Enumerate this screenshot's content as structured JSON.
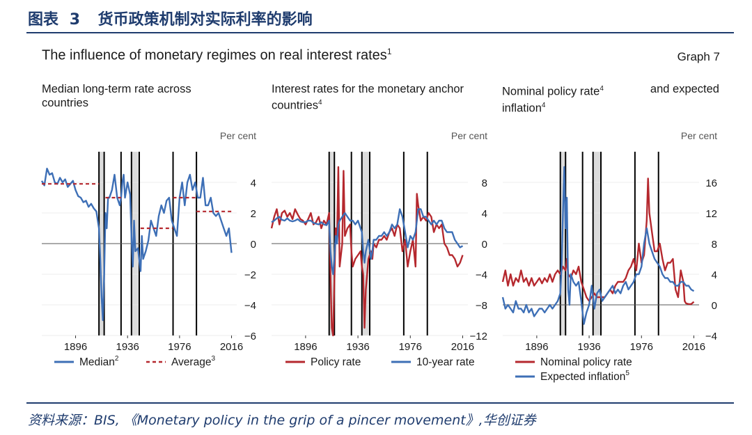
{
  "figure_label": {
    "prefix": "图表",
    "number": "3",
    "title": "货币政策机制对实际利率的影响"
  },
  "graph_header": {
    "title": "The influence of monetary regimes on real interest rates",
    "title_sup": "1",
    "number": "Graph 7"
  },
  "source": "资料来源：BIS, 《Monetary policy in the grip of a pincer movement》,华创证券",
  "colors": {
    "blue": "#3d6fb6",
    "red": "#b5282e",
    "shade": "#dcdcdc",
    "header": "#1f3c6e"
  },
  "panels": [
    {
      "title_line1": "Median long-term rate across",
      "title_line2": "countries",
      "title_sup": ""
    },
    {
      "title_line1": "Interest rates for the monetary anchor",
      "title_line2": "countries",
      "title_sup": "4"
    },
    {
      "title_line1": "Nominal policy rate",
      "title_line1_sup": "4",
      "title_line1_end": "and expected",
      "title_line2": "inflation",
      "title_sup": "4"
    }
  ],
  "chart_data": [
    {
      "type": "line",
      "title": "Median long-term rate across countries",
      "ylabel": "Per cent",
      "xlim": [
        1870,
        2020
      ],
      "ylim": [
        -6,
        6
      ],
      "xticks": [
        "1896",
        "1936",
        "1976",
        "2016"
      ],
      "yticks": [
        "4",
        "2",
        "0",
        "−2",
        "−4",
        "−6"
      ],
      "shaded_periods": [
        [
          1914,
          1918
        ],
        [
          1939,
          1945
        ]
      ],
      "regime_lines": [
        1914,
        1918,
        1931,
        1939,
        1945,
        1971,
        1989
      ],
      "series": [
        {
          "name": "Median",
          "sup": "2",
          "color": "blue",
          "style": "solid",
          "x": [
            1870,
            1872,
            1874,
            1876,
            1878,
            1880,
            1882,
            1884,
            1886,
            1888,
            1890,
            1892,
            1894,
            1896,
            1898,
            1900,
            1902,
            1904,
            1906,
            1908,
            1910,
            1912,
            1914,
            1915,
            1916,
            1917,
            1918,
            1919,
            1920,
            1921,
            1922,
            1924,
            1926,
            1928,
            1930,
            1931,
            1932,
            1933,
            1934,
            1936,
            1938,
            1939,
            1940,
            1941,
            1942,
            1944,
            1946,
            1947,
            1948,
            1950,
            1952,
            1954,
            1956,
            1958,
            1960,
            1962,
            1964,
            1966,
            1968,
            1970,
            1972,
            1974,
            1976,
            1978,
            1980,
            1982,
            1984,
            1986,
            1988,
            1990,
            1992,
            1994,
            1996,
            1998,
            2000,
            2002,
            2004,
            2006,
            2008,
            2010,
            2012,
            2014,
            2016
          ],
          "y": [
            4.1,
            3.8,
            4.9,
            4.5,
            4.6,
            4.0,
            3.9,
            4.3,
            4.0,
            4.2,
            3.7,
            3.9,
            4.1,
            3.5,
            3.1,
            3.0,
            2.7,
            2.8,
            2.4,
            2.6,
            2.3,
            2.1,
            1.0,
            -1.0,
            -3.5,
            -5.0,
            -2.0,
            2.0,
            1.0,
            3.0,
            3.0,
            3.5,
            4.5,
            3.0,
            2.5,
            3.0,
            4.0,
            4.5,
            3.0,
            4.0,
            3.2,
            0.5,
            -1.5,
            1.5,
            -0.5,
            -0.3,
            -1.8,
            0.5,
            -1.0,
            -0.5,
            0.2,
            1.5,
            1.0,
            0.5,
            1.8,
            2.5,
            2.0,
            2.8,
            3.0,
            1.5,
            1.0,
            0.5,
            3.0,
            4.0,
            2.5,
            4.0,
            4.5,
            3.5,
            4.0,
            3.0,
            3.0,
            4.3,
            2.5,
            2.5,
            3.0,
            2.0,
            1.8,
            2.0,
            1.5,
            1.0,
            0.5,
            1.0,
            -0.6
          ]
        },
        {
          "name": "Average",
          "sup": "3",
          "color": "red",
          "style": "dashed",
          "segments": [
            {
              "x": [
                1870,
                1914
              ],
              "y": [
                3.9,
                3.9
              ]
            },
            {
              "x": [
                1919,
                1931
              ],
              "y": [
                3.0,
                3.0
              ]
            },
            {
              "x": [
                1946,
                1971
              ],
              "y": [
                1.0,
                1.0
              ]
            },
            {
              "x": [
                1971,
                1989
              ],
              "y": [
                3.0,
                3.0
              ]
            },
            {
              "x": [
                1989,
                2016
              ],
              "y": [
                2.1,
                2.1
              ]
            }
          ]
        }
      ]
    },
    {
      "type": "line",
      "title": "Interest rates for the monetary anchor countries",
      "ylabel": "Per cent",
      "xlim": [
        1870,
        2020
      ],
      "ylim": [
        -12,
        12
      ],
      "xticks": [
        "1896",
        "1936",
        "1976",
        "2016"
      ],
      "yticks": [
        "8",
        "4",
        "0",
        "−4",
        "−8",
        "−12"
      ],
      "shaded_periods": [
        [
          1914,
          1918
        ],
        [
          1939,
          1945
        ]
      ],
      "regime_lines": [
        1914,
        1918,
        1931,
        1939,
        1945,
        1971,
        1989
      ],
      "series": [
        {
          "name": "Policy rate",
          "color": "red",
          "style": "solid",
          "x": [
            1870,
            1872,
            1874,
            1876,
            1878,
            1880,
            1882,
            1884,
            1886,
            1888,
            1890,
            1892,
            1894,
            1896,
            1898,
            1900,
            1902,
            1904,
            1906,
            1908,
            1910,
            1912,
            1914,
            1915,
            1916,
            1917,
            1918,
            1919,
            1920,
            1921,
            1922,
            1924,
            1925,
            1926,
            1928,
            1930,
            1931,
            1932,
            1934,
            1936,
            1938,
            1939,
            1940,
            1941,
            1942,
            1944,
            1946,
            1947,
            1948,
            1950,
            1952,
            1954,
            1956,
            1958,
            1960,
            1962,
            1964,
            1966,
            1968,
            1970,
            1972,
            1974,
            1976,
            1978,
            1980,
            1981,
            1982,
            1984,
            1986,
            1988,
            1990,
            1992,
            1994,
            1996,
            1998,
            2000,
            2002,
            2004,
            2006,
            2008,
            2010,
            2012,
            2014,
            2016
          ],
          "y": [
            2.0,
            3.5,
            4.5,
            2.5,
            4.0,
            4.3,
            3.5,
            4.0,
            3.2,
            4.5,
            3.8,
            3.2,
            3.0,
            2.5,
            3.2,
            4.0,
            2.5,
            2.8,
            3.5,
            2.0,
            3.0,
            2.5,
            4.0,
            -4.0,
            -11.0,
            -12.0,
            -5.0,
            2.0,
            0.5,
            10.0,
            -3.0,
            0.0,
            9.5,
            1.0,
            2.0,
            2.5,
            -1.0,
            -3.0,
            -2.0,
            -1.5,
            -1.0,
            -3.0,
            -4.0,
            -11.0,
            -6.0,
            -2.0,
            -1.0,
            -2.0,
            0.0,
            -0.5,
            0.5,
            0.5,
            1.0,
            0.5,
            1.5,
            2.0,
            1.0,
            2.5,
            2.0,
            -1.0,
            0.5,
            -3.0,
            -1.0,
            0.5,
            -3.0,
            6.5,
            5.0,
            3.0,
            3.5,
            3.0,
            4.0,
            3.5,
            1.5,
            2.5,
            2.0,
            2.5,
            0.0,
            -0.5,
            -1.5,
            -1.5,
            -2.0,
            -3.0,
            -2.5,
            -1.5
          ]
        },
        {
          "name": "10-year rate",
          "color": "blue",
          "style": "solid",
          "x": [
            1870,
            1872,
            1874,
            1876,
            1878,
            1880,
            1882,
            1884,
            1886,
            1888,
            1890,
            1892,
            1894,
            1896,
            1898,
            1900,
            1902,
            1904,
            1906,
            1908,
            1910,
            1912,
            1914,
            1915,
            1916,
            1917,
            1918,
            1919,
            1920,
            1921,
            1922,
            1924,
            1926,
            1928,
            1930,
            1932,
            1934,
            1936,
            1938,
            1939,
            1940,
            1941,
            1942,
            1944,
            1946,
            1947,
            1948,
            1950,
            1952,
            1954,
            1956,
            1958,
            1960,
            1962,
            1964,
            1966,
            1968,
            1970,
            1972,
            1974,
            1976,
            1978,
            1980,
            1982,
            1984,
            1986,
            1988,
            1990,
            1992,
            1994,
            1996,
            1998,
            2000,
            2002,
            2004,
            2006,
            2008,
            2010,
            2012,
            2014,
            2016
          ],
          "y": [
            2.8,
            3.0,
            3.3,
            3.5,
            3.1,
            3.0,
            3.3,
            3.0,
            2.9,
            3.0,
            3.2,
            2.9,
            2.8,
            2.8,
            3.0,
            3.0,
            2.7,
            2.6,
            2.5,
            2.8,
            2.5,
            2.4,
            3.0,
            -1.0,
            -3.0,
            -4.0,
            -2.0,
            1.0,
            0.0,
            2.5,
            3.0,
            3.5,
            4.0,
            3.5,
            3.0,
            3.0,
            2.5,
            3.0,
            2.0,
            1.5,
            -1.0,
            -2.5,
            -1.0,
            0.5,
            -2.0,
            -1.0,
            0.5,
            0.5,
            1.0,
            1.0,
            1.5,
            1.0,
            1.5,
            2.5,
            2.0,
            2.5,
            4.5,
            3.5,
            1.5,
            -0.5,
            1.0,
            0.5,
            1.5,
            4.5,
            4.5,
            3.5,
            3.5,
            3.0,
            2.5,
            3.0,
            2.5,
            3.0,
            3.0,
            2.0,
            1.5,
            1.5,
            1.5,
            0.5,
            0.0,
            -0.5,
            -0.3
          ]
        }
      ]
    },
    {
      "type": "line",
      "title": "Nominal policy rate and expected inflation",
      "ylabel": "Per cent",
      "xlim": [
        1870,
        2020
      ],
      "ylim": [
        -4,
        20
      ],
      "xticks": [
        "1896",
        "1936",
        "1976",
        "2016"
      ],
      "yticks": [
        "16",
        "12",
        "8",
        "4",
        "0",
        "−4"
      ],
      "shaded_periods": [
        [
          1914,
          1918
        ],
        [
          1939,
          1945
        ]
      ],
      "regime_lines": [
        1914,
        1918,
        1931,
        1939,
        1945,
        1971,
        1989
      ],
      "series": [
        {
          "name": "Nominal policy rate",
          "color": "red",
          "style": "solid",
          "x": [
            1870,
            1872,
            1874,
            1876,
            1878,
            1880,
            1882,
            1884,
            1886,
            1888,
            1890,
            1892,
            1894,
            1896,
            1898,
            1900,
            1902,
            1904,
            1906,
            1908,
            1910,
            1912,
            1914,
            1916,
            1918,
            1919,
            1920,
            1922,
            1924,
            1926,
            1928,
            1930,
            1932,
            1934,
            1936,
            1938,
            1940,
            1942,
            1944,
            1946,
            1948,
            1950,
            1952,
            1954,
            1956,
            1958,
            1960,
            1962,
            1964,
            1966,
            1968,
            1970,
            1972,
            1974,
            1976,
            1978,
            1980,
            1981,
            1982,
            1984,
            1986,
            1988,
            1990,
            1992,
            1994,
            1996,
            1998,
            2000,
            2002,
            2004,
            2006,
            2008,
            2009,
            2010,
            2012,
            2014,
            2016
          ],
          "y": [
            3.0,
            4.5,
            2.5,
            4.0,
            2.5,
            3.5,
            3.0,
            4.5,
            3.0,
            3.5,
            2.5,
            3.5,
            2.5,
            3.0,
            3.5,
            2.8,
            3.5,
            3.0,
            4.0,
            3.0,
            4.0,
            4.5,
            4.0,
            5.0,
            4.5,
            6.0,
            4.0,
            3.5,
            4.5,
            4.0,
            5.0,
            3.0,
            2.0,
            1.0,
            0.5,
            1.0,
            1.5,
            1.0,
            1.0,
            1.0,
            1.0,
            1.5,
            2.0,
            1.5,
            2.5,
            3.0,
            3.0,
            3.0,
            3.5,
            4.5,
            5.0,
            6.0,
            4.5,
            8.0,
            5.5,
            6.5,
            11.0,
            16.5,
            12.0,
            9.5,
            7.0,
            7.0,
            8.0,
            6.0,
            4.5,
            5.5,
            5.5,
            6.0,
            2.0,
            1.0,
            4.5,
            3.0,
            0.5,
            0.2,
            0.1,
            0.1,
            0.4
          ]
        },
        {
          "name": "Expected inflation",
          "sup": "5",
          "color": "blue",
          "style": "solid",
          "x": [
            1870,
            1872,
            1874,
            1876,
            1878,
            1880,
            1882,
            1884,
            1886,
            1888,
            1890,
            1892,
            1894,
            1896,
            1898,
            1900,
            1902,
            1904,
            1906,
            1908,
            1910,
            1912,
            1914,
            1915,
            1916,
            1917,
            1918,
            1919,
            1920,
            1921,
            1922,
            1924,
            1926,
            1928,
            1930,
            1932,
            1934,
            1936,
            1938,
            1940,
            1942,
            1944,
            1946,
            1948,
            1950,
            1952,
            1954,
            1956,
            1958,
            1960,
            1962,
            1964,
            1966,
            1968,
            1970,
            1972,
            1974,
            1976,
            1978,
            1980,
            1982,
            1984,
            1986,
            1988,
            1990,
            1992,
            1994,
            1996,
            1998,
            2000,
            2002,
            2004,
            2006,
            2008,
            2010,
            2012,
            2014,
            2016
          ],
          "y": [
            1.0,
            -0.5,
            0.0,
            -0.5,
            -1.0,
            0.5,
            -0.5,
            -0.5,
            -1.0,
            0.0,
            -1.0,
            -0.5,
            -1.5,
            -1.0,
            -0.5,
            -0.5,
            -1.0,
            -0.5,
            0.0,
            -0.5,
            0.0,
            0.5,
            1.5,
            5.0,
            12.0,
            18.0,
            10.0,
            14.0,
            2.0,
            0.0,
            4.0,
            3.0,
            2.5,
            3.0,
            0.5,
            -2.5,
            -1.0,
            0.0,
            2.5,
            -0.5,
            1.5,
            2.0,
            0.5,
            1.0,
            1.5,
            2.0,
            2.5,
            1.5,
            2.0,
            1.5,
            2.5,
            3.0,
            2.0,
            2.5,
            3.0,
            4.0,
            4.0,
            5.0,
            8.0,
            10.0,
            8.0,
            7.0,
            6.0,
            5.5,
            5.0,
            4.0,
            3.5,
            3.5,
            3.0,
            3.0,
            2.5,
            2.5,
            3.0,
            3.0,
            2.5,
            2.5,
            2.0,
            1.8
          ]
        }
      ]
    }
  ]
}
